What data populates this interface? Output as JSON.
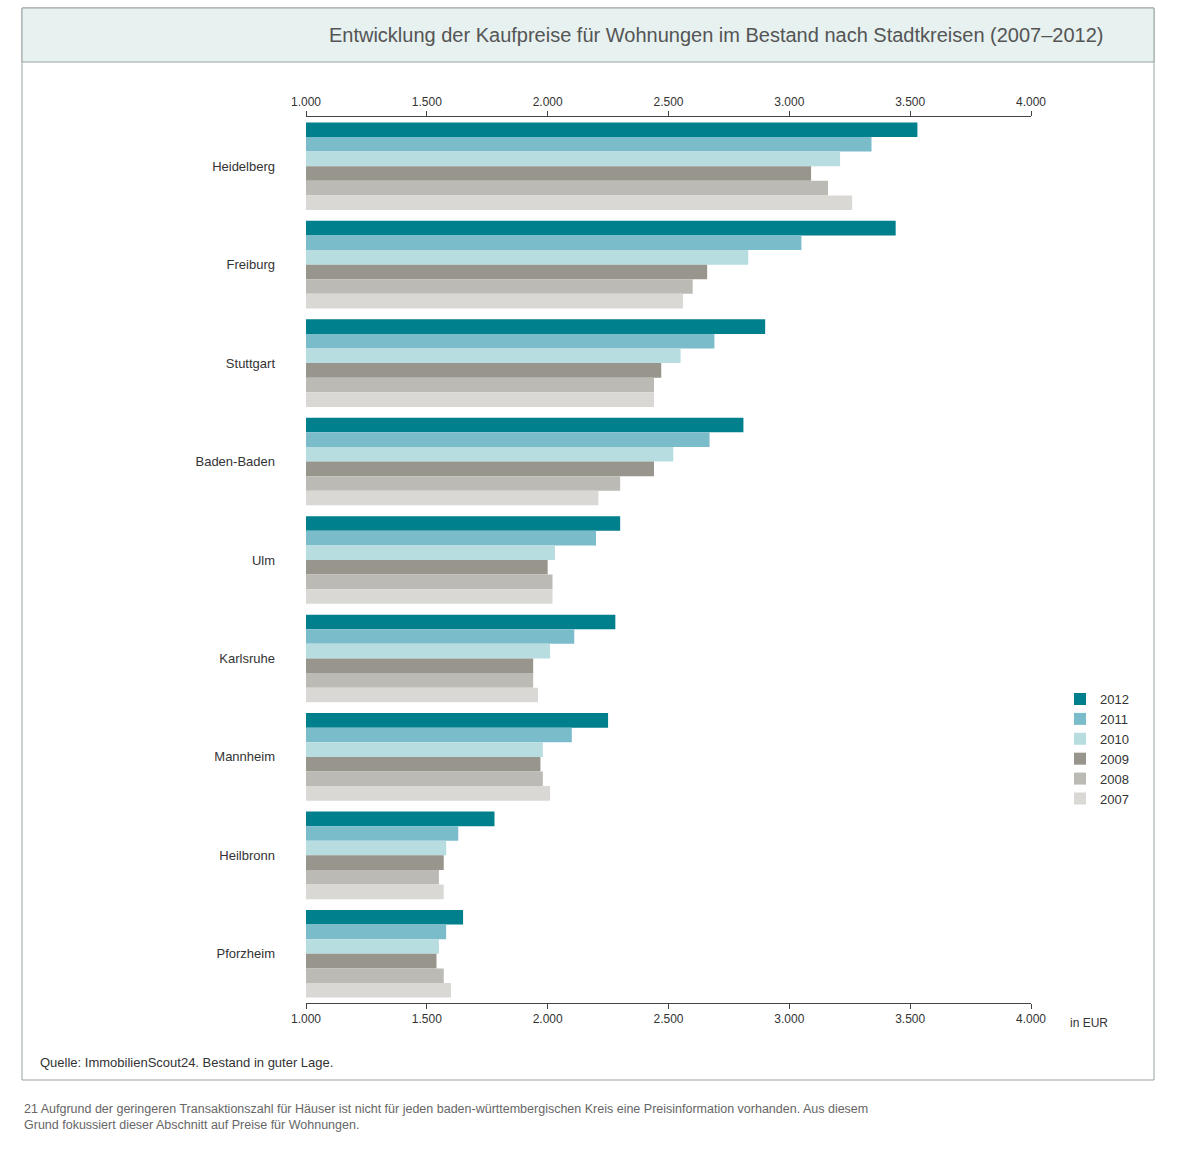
{
  "chart_data": {
    "type": "bar",
    "orientation": "horizontal",
    "title": "Entwicklung der Kaufpreise für Wohnungen im Bestand nach Stadtkreisen (2007–2012)",
    "x_label": "in EUR",
    "source": "Quelle: ImmobilienScout24. Bestand in guter Lage.",
    "footnote": "21 Aufgrund der geringeren Transaktionszahl für Häuser ist nicht für jeden baden-württembergischen Kreis eine Preisinformation vorhanden. Aus diesem Grund fokussiert dieser Abschnitt auf Preise für Wohnungen.",
    "categories": [
      "Heidelberg",
      "Freiburg",
      "Stuttgart",
      "Baden-Baden",
      "Ulm",
      "Karlsruhe",
      "Mannheim",
      "Heilbronn",
      "Pforzheim"
    ],
    "series": [
      {
        "name": "2012",
        "color": "#007f8c",
        "values": [
          3530,
          3440,
          2900,
          2810,
          2300,
          2280,
          2250,
          1780,
          1650
        ]
      },
      {
        "name": "2011",
        "color": "#7bbccb",
        "values": [
          3340,
          3050,
          2690,
          2670,
          2200,
          2110,
          2100,
          1630,
          1580
        ]
      },
      {
        "name": "2010",
        "color": "#b8dde1",
        "values": [
          3210,
          2830,
          2550,
          2520,
          2030,
          2010,
          1980,
          1580,
          1550
        ]
      },
      {
        "name": "2009",
        "color": "#98958c",
        "values": [
          3090,
          2660,
          2470,
          2440,
          2000,
          1940,
          1970,
          1570,
          1540
        ]
      },
      {
        "name": "2008",
        "color": "#bcbab4",
        "values": [
          3160,
          2600,
          2440,
          2300,
          2020,
          1940,
          1980,
          1550,
          1570
        ]
      },
      {
        "name": "2007",
        "color": "#d9d8d4",
        "values": [
          3260,
          2560,
          2440,
          2210,
          2020,
          1960,
          2010,
          1570,
          1600
        ]
      }
    ],
    "xlim": [
      1000,
      4000
    ],
    "xticks": [
      {
        "value": 1000,
        "label": "1.000"
      },
      {
        "value": 1500,
        "label": "1.500"
      },
      {
        "value": 2000,
        "label": "2.000"
      },
      {
        "value": 2500,
        "label": "2.500"
      },
      {
        "value": 3000,
        "label": "3.000"
      },
      {
        "value": 3500,
        "label": "3.500"
      },
      {
        "value": 4000,
        "label": "4.000"
      }
    ],
    "grid": false,
    "legend": "right"
  }
}
